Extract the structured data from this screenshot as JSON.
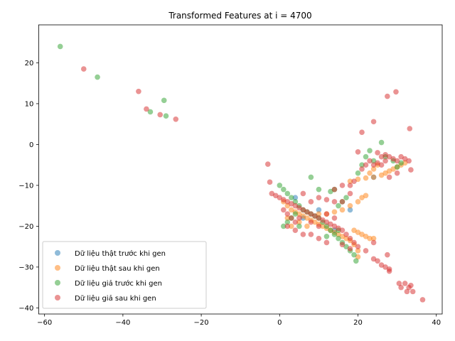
{
  "chart_data": {
    "type": "scatter",
    "title": "Transformed Features at i = 4700",
    "xlabel": "",
    "ylabel": "",
    "xlim": [
      -61.5,
      41.5
    ],
    "ylim": [
      -41.5,
      29.3
    ],
    "xticks": [
      -60,
      -40,
      -20,
      0,
      20,
      40
    ],
    "yticks": [
      -40,
      -30,
      -20,
      -10,
      0,
      10,
      20
    ],
    "grid": false,
    "legend_position": "lower-left",
    "series": [
      {
        "name": "Dữ liệu thật trước khi gen",
        "color": "#1f77b4",
        "points": [
          [
            6,
            -18
          ],
          [
            10,
            -16
          ],
          [
            14,
            -21
          ],
          [
            18,
            -16
          ],
          [
            24,
            -8
          ],
          [
            4,
            -13
          ]
        ]
      },
      {
        "name": "Dữ liệu thật sau khi gen",
        "color": "#ff7f0e",
        "points": [
          [
            1,
            -14
          ],
          [
            2,
            -15
          ],
          [
            3,
            -16
          ],
          [
            4,
            -16.5
          ],
          [
            5,
            -17
          ],
          [
            6,
            -17.5
          ],
          [
            7,
            -18
          ],
          [
            8,
            -18.5
          ],
          [
            9,
            -19
          ],
          [
            10,
            -19.5
          ],
          [
            11,
            -20
          ],
          [
            12,
            -20.5
          ],
          [
            13,
            -21
          ],
          [
            14,
            -21.5
          ],
          [
            15,
            -22
          ],
          [
            16,
            -22.5
          ],
          [
            17,
            -23
          ],
          [
            18,
            -23.5
          ],
          [
            19,
            -24.5
          ],
          [
            20,
            -26
          ],
          [
            20,
            -27.5
          ],
          [
            19,
            -21
          ],
          [
            20,
            -21.5
          ],
          [
            21,
            -22
          ],
          [
            22,
            -22.5
          ],
          [
            23,
            -23
          ],
          [
            24,
            -23
          ],
          [
            10,
            -17
          ],
          [
            12,
            -17
          ],
          [
            14,
            -16.5
          ],
          [
            16,
            -16
          ],
          [
            18,
            -15
          ],
          [
            20,
            -14
          ],
          [
            21,
            -13
          ],
          [
            22,
            -12.5
          ],
          [
            18,
            -9
          ],
          [
            20,
            -8.5
          ],
          [
            22,
            -8.2
          ],
          [
            24,
            -8
          ],
          [
            26,
            -7.5
          ],
          [
            27,
            -7
          ],
          [
            28,
            -6.5
          ],
          [
            29,
            -6
          ],
          [
            30,
            -5.5
          ],
          [
            31,
            -5
          ],
          [
            32,
            -4.5
          ],
          [
            23,
            -7
          ],
          [
            24,
            -6
          ],
          [
            25,
            -5
          ],
          [
            7,
            -20
          ],
          [
            5,
            -19
          ],
          [
            3,
            -20
          ],
          [
            2,
            -18
          ]
        ]
      },
      {
        "name": "Dữ liệu giả trước khi gen",
        "color": "#2ca02c",
        "points": [
          [
            -56,
            24
          ],
          [
            -46.5,
            16.5
          ],
          [
            -33,
            8
          ],
          [
            -29.5,
            10.8
          ],
          [
            -29,
            7
          ],
          [
            0,
            -10
          ],
          [
            1,
            -11
          ],
          [
            2,
            -12
          ],
          [
            3,
            -13
          ],
          [
            4,
            -14
          ],
          [
            5,
            -15
          ],
          [
            6,
            -16
          ],
          [
            7,
            -16.5
          ],
          [
            8,
            -17
          ],
          [
            9,
            -17.5
          ],
          [
            10,
            -18
          ],
          [
            11,
            -19
          ],
          [
            12,
            -20
          ],
          [
            13,
            -21
          ],
          [
            14,
            -22
          ],
          [
            15,
            -23
          ],
          [
            16,
            -24
          ],
          [
            17,
            -25
          ],
          [
            18,
            -26
          ],
          [
            19,
            -27
          ],
          [
            19.5,
            -28.5
          ],
          [
            8,
            -8
          ],
          [
            10,
            -11
          ],
          [
            13,
            -11.5
          ],
          [
            14,
            -11
          ],
          [
            4,
            -17
          ],
          [
            2,
            -19
          ],
          [
            5,
            -20
          ],
          [
            20,
            -7
          ],
          [
            21,
            -5
          ],
          [
            22,
            -3
          ],
          [
            23,
            -1.5
          ],
          [
            26,
            0.5
          ],
          [
            27,
            -3
          ],
          [
            29,
            -4
          ],
          [
            30,
            -5.5
          ],
          [
            31,
            -4.5
          ],
          [
            24,
            -4
          ],
          [
            17,
            -13
          ],
          [
            16,
            -14
          ],
          [
            15,
            -15
          ],
          [
            1,
            -20
          ],
          [
            3,
            -18
          ],
          [
            12,
            -22.5
          ],
          [
            15,
            -21
          ]
        ]
      },
      {
        "name": "Dữ liệu giả sau khi gen",
        "color": "#d62728",
        "points": [
          [
            -50,
            18.5
          ],
          [
            -36,
            13
          ],
          [
            -34,
            8.7
          ],
          [
            -30.5,
            7.3
          ],
          [
            -26.5,
            6.2
          ],
          [
            -3,
            -4.8
          ],
          [
            -2.5,
            -9.2
          ],
          [
            -2,
            -12
          ],
          [
            -1,
            -12.5
          ],
          [
            0,
            -13
          ],
          [
            1,
            -13.5
          ],
          [
            2,
            -14
          ],
          [
            3,
            -14.5
          ],
          [
            4,
            -15
          ],
          [
            5,
            -15.5
          ],
          [
            6,
            -16
          ],
          [
            7,
            -16.5
          ],
          [
            8,
            -17
          ],
          [
            9,
            -17.5
          ],
          [
            10,
            -18
          ],
          [
            11,
            -18.5
          ],
          [
            12,
            -19
          ],
          [
            13,
            -19.5
          ],
          [
            14,
            -20
          ],
          [
            15,
            -20.5
          ],
          [
            16,
            -21
          ],
          [
            17,
            -22
          ],
          [
            18,
            -23
          ],
          [
            19,
            -24
          ],
          [
            20,
            -25
          ],
          [
            1,
            -16
          ],
          [
            2,
            -17
          ],
          [
            3,
            -18
          ],
          [
            4,
            -19
          ],
          [
            2,
            -20
          ],
          [
            5,
            -18
          ],
          [
            8,
            -19
          ],
          [
            10,
            -20
          ],
          [
            12,
            -17
          ],
          [
            14,
            -18
          ],
          [
            6,
            -12
          ],
          [
            8,
            -14
          ],
          [
            10,
            -13
          ],
          [
            12,
            -13.5
          ],
          [
            14,
            -14
          ],
          [
            16,
            -14
          ],
          [
            18,
            -12
          ],
          [
            16,
            -10
          ],
          [
            14,
            -11
          ],
          [
            18,
            -10
          ],
          [
            19,
            -9
          ],
          [
            21,
            -6
          ],
          [
            22,
            -5
          ],
          [
            23,
            -4
          ],
          [
            24,
            -5
          ],
          [
            25,
            -4.5
          ],
          [
            26,
            -5
          ],
          [
            27,
            -4
          ],
          [
            28,
            -3
          ],
          [
            29,
            -3.5
          ],
          [
            30,
            -4
          ],
          [
            31,
            -3
          ],
          [
            32,
            -3.5
          ],
          [
            33,
            -4
          ],
          [
            33.5,
            -6.2
          ],
          [
            30,
            -7
          ],
          [
            28,
            -8
          ],
          [
            20,
            -1.8
          ],
          [
            21,
            3
          ],
          [
            24,
            5.6
          ],
          [
            27.5,
            11.8
          ],
          [
            29.7,
            12.9
          ],
          [
            33.2,
            3.9
          ],
          [
            25,
            -2
          ],
          [
            26,
            -3
          ],
          [
            27,
            -2.5
          ],
          [
            22,
            -26
          ],
          [
            24,
            -24
          ],
          [
            24,
            -28
          ],
          [
            25,
            -28.5
          ],
          [
            26,
            -29.5
          ],
          [
            27,
            -30
          ],
          [
            28,
            -31
          ],
          [
            27.5,
            -27
          ],
          [
            28,
            -30.5
          ],
          [
            30.5,
            -34
          ],
          [
            31,
            -35
          ],
          [
            32,
            -34
          ],
          [
            32.5,
            -36
          ],
          [
            33,
            -35
          ],
          [
            33.5,
            -34.5
          ],
          [
            34,
            -36
          ],
          [
            36.5,
            -38
          ],
          [
            4,
            -21
          ],
          [
            6,
            -22
          ],
          [
            8,
            -22
          ],
          [
            10,
            -23
          ],
          [
            12,
            -24
          ],
          [
            16,
            -24.5
          ],
          [
            18,
            -25.5
          ]
        ]
      }
    ]
  }
}
